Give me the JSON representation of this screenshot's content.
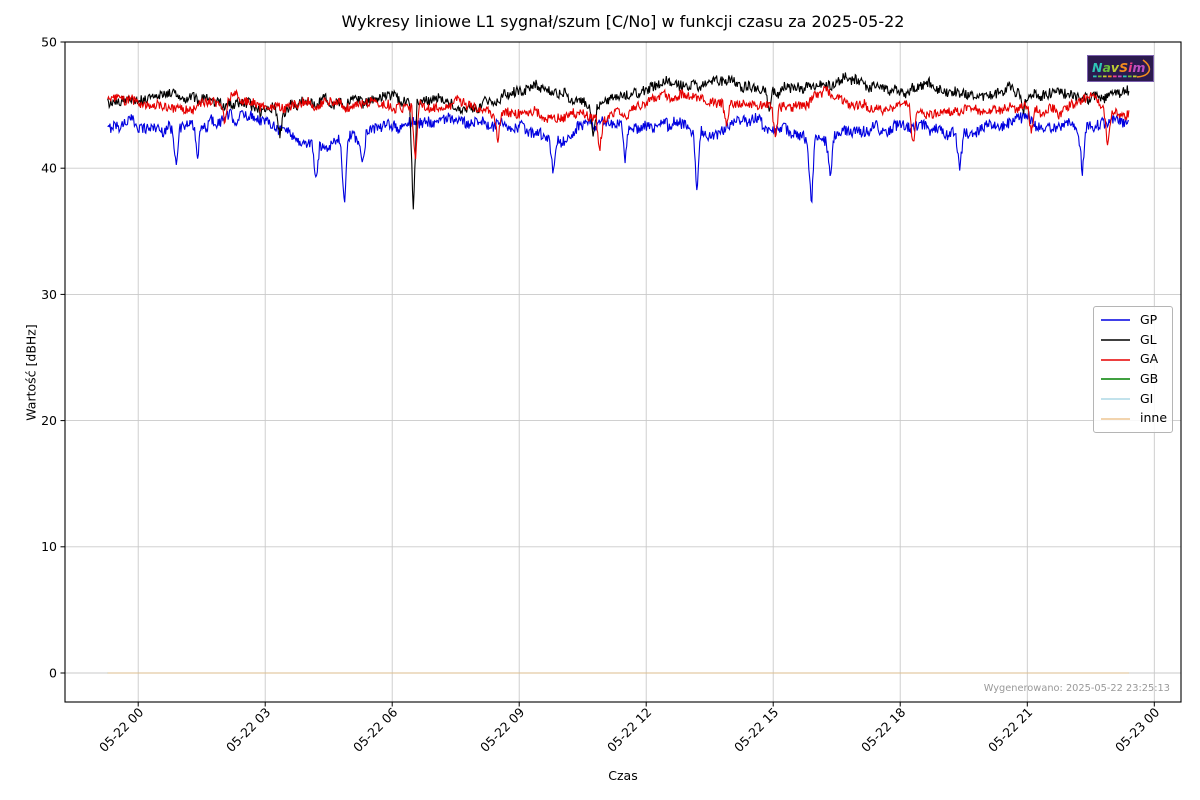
{
  "chart_data": {
    "type": "line",
    "title": "Wykresy liniowe L1 sygnał/szum [C/No] w funkcji czasu za 2025-05-22",
    "xlabel": "Czas",
    "ylabel": "Wartość [dBHz]",
    "ylim": [
      -2.3,
      50
    ],
    "y_ticks": [
      0,
      10,
      20,
      30,
      40,
      50
    ],
    "x_ticks": [
      {
        "t": 0,
        "label": "05-22 00"
      },
      {
        "t": 3,
        "label": "05-22 03"
      },
      {
        "t": 6,
        "label": "05-22 06"
      },
      {
        "t": 9,
        "label": "05-22 09"
      },
      {
        "t": 12,
        "label": "05-22 12"
      },
      {
        "t": 15,
        "label": "05-22 15"
      },
      {
        "t": 18,
        "label": "05-22 18"
      },
      {
        "t": 21,
        "label": "05-22 21"
      },
      {
        "t": 24,
        "label": "05-23 00"
      }
    ],
    "x_range": [
      -0.72,
      23.4
    ],
    "grid": true,
    "legend_position": "center-right",
    "spike_width": 0.09,
    "series": [
      {
        "name": "GP",
        "color": "#0000e0",
        "noise": 0.6,
        "points": [
          [
            -0.72,
            43.2
          ],
          [
            0,
            43.6
          ],
          [
            0.8,
            43.0
          ],
          [
            1.5,
            43.4
          ],
          [
            2.2,
            44.1
          ],
          [
            3,
            43.7
          ],
          [
            3.5,
            42.7
          ],
          [
            4,
            42.1
          ],
          [
            4.6,
            41.9
          ],
          [
            5.1,
            42.4
          ],
          [
            5.6,
            43.1
          ],
          [
            6.1,
            43.4
          ],
          [
            6.7,
            43.6
          ],
          [
            7.3,
            43.9
          ],
          [
            8,
            43.6
          ],
          [
            8.7,
            43.3
          ],
          [
            9.4,
            42.7
          ],
          [
            10,
            42.3
          ],
          [
            10.6,
            43.3
          ],
          [
            11.2,
            43.6
          ],
          [
            11.8,
            43.0
          ],
          [
            12.4,
            43.6
          ],
          [
            13,
            43.2
          ],
          [
            13.5,
            42.5
          ],
          [
            14.2,
            43.8
          ],
          [
            15,
            43.3
          ],
          [
            15.6,
            42.6
          ],
          [
            16.4,
            42.3
          ],
          [
            17,
            43.3
          ],
          [
            17.7,
            43.0
          ],
          [
            18.4,
            43.5
          ],
          [
            19,
            42.9
          ],
          [
            19.6,
            42.5
          ],
          [
            20.2,
            43.3
          ],
          [
            21,
            43.8
          ],
          [
            21.7,
            43.3
          ],
          [
            22.4,
            43.0
          ],
          [
            23,
            43.9
          ],
          [
            23.4,
            43.6
          ]
        ],
        "spikes": [
          [
            0.9,
            -2.2
          ],
          [
            1.4,
            -2.6
          ],
          [
            4.2,
            -3.4
          ],
          [
            4.87,
            -5.6
          ],
          [
            5.3,
            -2.5
          ],
          [
            9.8,
            -3.0
          ],
          [
            11.5,
            -3.0
          ],
          [
            13.2,
            -4.8
          ],
          [
            15.9,
            -5.4
          ],
          [
            16.35,
            -3.2
          ],
          [
            19.4,
            -3.0
          ],
          [
            22.3,
            -3.2
          ]
        ]
      },
      {
        "name": "GL",
        "color": "#000000",
        "noise": 0.55,
        "points": [
          [
            -0.72,
            45.2
          ],
          [
            0,
            45.4
          ],
          [
            0.9,
            45.9
          ],
          [
            1.8,
            45.1
          ],
          [
            2.6,
            44.9
          ],
          [
            3.3,
            44.5
          ],
          [
            4,
            45.2
          ],
          [
            5,
            45.2
          ],
          [
            6,
            45.4
          ],
          [
            7,
            45.5
          ],
          [
            7.8,
            44.9
          ],
          [
            8.6,
            45.4
          ],
          [
            9.3,
            46.5
          ],
          [
            10,
            45.9
          ],
          [
            10.8,
            44.7
          ],
          [
            11.4,
            46.0
          ],
          [
            12,
            46.4
          ],
          [
            12.6,
            46.8
          ],
          [
            13.2,
            46.5
          ],
          [
            13.8,
            47.0
          ],
          [
            14.5,
            46.4
          ],
          [
            15.1,
            45.9
          ],
          [
            15.6,
            46.6
          ],
          [
            16.2,
            46.2
          ],
          [
            16.9,
            47.3
          ],
          [
            17.5,
            46.3
          ],
          [
            18.1,
            45.9
          ],
          [
            18.7,
            46.5
          ],
          [
            19.4,
            46.1
          ],
          [
            20,
            45.7
          ],
          [
            20.6,
            46.2
          ],
          [
            21.3,
            45.6
          ],
          [
            22,
            45.9
          ],
          [
            22.7,
            45.5
          ],
          [
            23.4,
            46.4
          ]
        ],
        "spikes": [
          [
            3.35,
            -1.6
          ],
          [
            6.5,
            -9.0
          ],
          [
            10.75,
            -2.2
          ],
          [
            14.9,
            -1.8
          ],
          [
            20.9,
            -1.5
          ]
        ]
      },
      {
        "name": "GA",
        "color": "#e60000",
        "noise": 0.5,
        "points": [
          [
            -0.72,
            45.4
          ],
          [
            0,
            45.1
          ],
          [
            0.7,
            44.7
          ],
          [
            1.5,
            44.9
          ],
          [
            2.3,
            45.7
          ],
          [
            3,
            44.6
          ],
          [
            3.6,
            44.8
          ],
          [
            4.3,
            45.2
          ],
          [
            5,
            45.0
          ],
          [
            5.6,
            45.4
          ],
          [
            6.2,
            44.8
          ],
          [
            7,
            44.9
          ],
          [
            7.7,
            45.3
          ],
          [
            8.4,
            44.3
          ],
          [
            9.1,
            44.6
          ],
          [
            9.7,
            44.0
          ],
          [
            10.4,
            44.3
          ],
          [
            11,
            43.9
          ],
          [
            11.7,
            44.5
          ],
          [
            12.3,
            45.8
          ],
          [
            13,
            45.6
          ],
          [
            13.6,
            45.1
          ],
          [
            14.3,
            45.4
          ],
          [
            15,
            44.8
          ],
          [
            15.7,
            45.1
          ],
          [
            16.2,
            46.2
          ],
          [
            16.8,
            45.2
          ],
          [
            17.4,
            44.7
          ],
          [
            18,
            44.9
          ],
          [
            18.8,
            44.4
          ],
          [
            19.5,
            44.7
          ],
          [
            20.2,
            44.5
          ],
          [
            21,
            44.8
          ],
          [
            21.8,
            44.4
          ],
          [
            22.5,
            45.5
          ],
          [
            23,
            44.4
          ],
          [
            23.4,
            44.5
          ]
        ],
        "spikes": [
          [
            2.05,
            -2.2
          ],
          [
            6.55,
            -4.4
          ],
          [
            8.5,
            -2.0
          ],
          [
            10.9,
            -2.6
          ],
          [
            13.9,
            -2.2
          ],
          [
            15.05,
            -2.6
          ],
          [
            18.3,
            -3.0
          ],
          [
            21.1,
            -2.2
          ],
          [
            22.9,
            -2.6
          ]
        ]
      },
      {
        "name": "GB",
        "color": "#008000",
        "noise": 0,
        "points": [
          [
            -0.72,
            0
          ],
          [
            23.4,
            0
          ]
        ],
        "spikes": []
      },
      {
        "name": "GI",
        "color": "#add8e6",
        "noise": 0,
        "points": [
          [
            -0.72,
            0
          ],
          [
            23.4,
            0
          ]
        ],
        "spikes": []
      },
      {
        "name": "inne",
        "color": "#e8b878",
        "noise": 0,
        "alpha": 0.8,
        "points": [
          [
            -0.72,
            0
          ],
          [
            23.4,
            0
          ]
        ],
        "spikes": []
      }
    ],
    "generated_label": "Wygenerowano: 2025-05-22 23:25:13"
  },
  "watermark": {
    "text": "NavSim"
  },
  "colors": {
    "grid": "#c9c9c9",
    "spine": "#000000",
    "generated_text": "#999999",
    "logo_bg": "#2b1a4e",
    "logo_letters": [
      "#2ec4b6",
      "#6abf3a",
      "#c0cf33",
      "#f28c1e",
      "#ef3f8f",
      "#c04fc0"
    ],
    "logo_swoosh": "#f28c1e"
  }
}
